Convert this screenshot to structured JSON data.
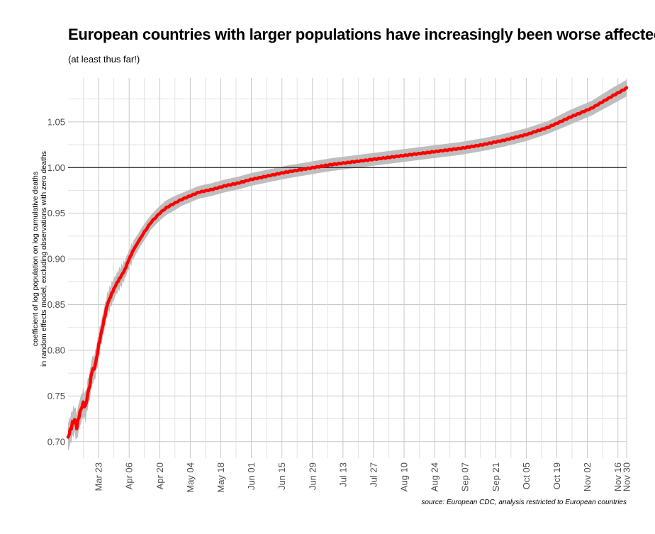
{
  "chart_data": {
    "type": "line",
    "title": "European countries with larger populations have increasingly been worse affected",
    "subtitle": "(at least thus far!)",
    "caption": "source: European CDC, analysis restricted to European countries",
    "ylabel_lines": [
      "coefficient of log population on log cumulative deaths",
      "in random effects model, excluding observations with zero deaths"
    ],
    "ylim": [
      0.682,
      1.098
    ],
    "yticks": [
      0.7,
      0.75,
      0.8,
      0.85,
      0.9,
      0.95,
      1.0,
      1.05
    ],
    "ytick_labels": [
      "0.70",
      "0.75",
      "0.80",
      "0.85",
      "0.90",
      "0.95",
      "1.00",
      "1.05"
    ],
    "reference_line": 1.0,
    "x_range_days": [
      0,
      256
    ],
    "xticks_days": [
      14,
      28,
      42,
      56,
      70,
      84,
      98,
      112,
      126,
      140,
      154,
      168,
      182,
      196,
      210,
      224,
      238,
      252,
      266
    ],
    "xtick_labels": [
      "Mar 23",
      "Apr 06",
      "Apr 20",
      "May 04",
      "May 18",
      "Jun 01",
      "Jun 15",
      "Jun 29",
      "Jul 13",
      "Jul 27",
      "Aug 10",
      "Aug 24",
      "Sep 07",
      "Sep 21",
      "Oct 05",
      "Oct 19",
      "Nov 02",
      "Nov 16",
      "Nov 30"
    ],
    "x_unit": "days since Mar 09",
    "series": [
      {
        "name": "coefficient",
        "color": "#ff0000",
        "x": [
          0,
          1,
          2,
          3,
          4,
          5,
          6,
          7,
          8,
          9,
          10,
          11,
          12,
          13,
          14,
          16,
          18,
          20,
          22,
          24,
          26,
          28,
          30,
          32,
          34,
          36,
          38,
          40,
          42,
          45,
          48,
          52,
          56,
          60,
          66,
          72,
          78,
          84,
          90,
          100,
          110,
          120,
          130,
          140,
          150,
          160,
          170,
          180,
          190,
          200,
          210,
          220,
          230,
          240,
          250,
          256
        ],
        "y": [
          0.705,
          0.712,
          0.72,
          0.724,
          0.716,
          0.728,
          0.736,
          0.742,
          0.738,
          0.752,
          0.762,
          0.778,
          0.78,
          0.79,
          0.805,
          0.828,
          0.85,
          0.862,
          0.872,
          0.88,
          0.888,
          0.9,
          0.91,
          0.918,
          0.926,
          0.933,
          0.94,
          0.945,
          0.95,
          0.956,
          0.96,
          0.965,
          0.969,
          0.973,
          0.976,
          0.98,
          0.983,
          0.987,
          0.99,
          0.995,
          0.999,
          1.003,
          1.006,
          1.009,
          1.012,
          1.015,
          1.018,
          1.021,
          1.025,
          1.03,
          1.036,
          1.044,
          1.055,
          1.065,
          1.079,
          1.087
        ],
        "band_halfwidth": [
          0.015,
          0.015,
          0.015,
          0.015,
          0.015,
          0.015,
          0.015,
          0.015,
          0.015,
          0.015,
          0.015,
          0.015,
          0.014,
          0.014,
          0.013,
          0.013,
          0.012,
          0.012,
          0.011,
          0.011,
          0.01,
          0.01,
          0.01,
          0.009,
          0.009,
          0.009,
          0.008,
          0.008,
          0.008,
          0.008,
          0.008,
          0.007,
          0.007,
          0.007,
          0.007,
          0.007,
          0.007,
          0.007,
          0.007,
          0.007,
          0.007,
          0.007,
          0.007,
          0.007,
          0.007,
          0.007,
          0.007,
          0.007,
          0.007,
          0.007,
          0.007,
          0.007,
          0.008,
          0.008,
          0.009,
          0.009
        ]
      }
    ]
  }
}
